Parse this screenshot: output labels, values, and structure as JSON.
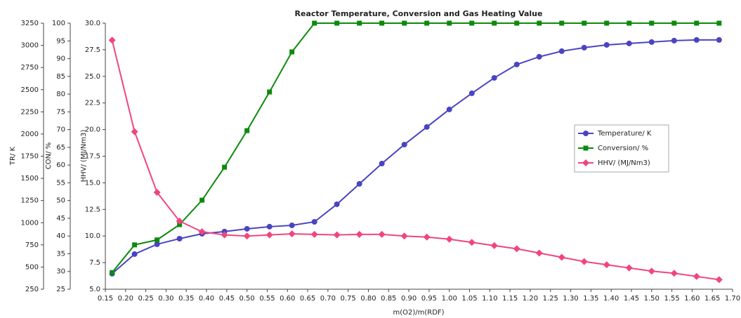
{
  "chart_data": {
    "type": "line",
    "title": "Reactor Temperature, Conversion and Gas Heating Value",
    "x_label": "m(O2)/m(RDF)",
    "y_label": "TR/ K",
    "y2_label": "CON/ %",
    "y3_label": "HHV/ (MJ/Nm3)",
    "x": [
      0.1667,
      0.2222,
      0.2778,
      0.3333,
      0.3889,
      0.4444,
      0.5,
      0.5556,
      0.6111,
      0.6667,
      0.7222,
      0.7778,
      0.8333,
      0.8889,
      0.9444,
      1.0,
      1.0556,
      1.1111,
      1.1667,
      1.2222,
      1.2778,
      1.3333,
      1.3889,
      1.4444,
      1.5,
      1.5556,
      1.6111,
      1.6667
    ],
    "xlim": [
      0.15,
      1.7
    ],
    "xticks": [
      0.15,
      {
        "value": 0.2,
        "label": "0.20"
      },
      0.25,
      {
        "value": 0.3,
        "label": "0.30"
      },
      0.35,
      {
        "value": 0.4,
        "label": "0.40"
      },
      0.45,
      {
        "value": 0.5,
        "label": "0.50"
      },
      0.55,
      {
        "value": 0.6,
        "label": "0.60"
      },
      0.65,
      {
        "value": 0.7,
        "label": "0.70"
      },
      0.75,
      {
        "value": 0.8,
        "label": "0.80"
      },
      0.85,
      {
        "value": 0.9,
        "label": "0.90"
      },
      0.95,
      {
        "value": 1.0,
        "label": "1.00"
      },
      1.05,
      {
        "value": 1.1,
        "label": "1.10"
      },
      1.15,
      {
        "value": 1.2,
        "label": "1.20"
      },
      1.25,
      {
        "value": 1.3,
        "label": "1.30"
      },
      1.35,
      {
        "value": 1.4,
        "label": "1.40"
      },
      1.45,
      {
        "value": 1.5,
        "label": "1.50"
      },
      1.55,
      {
        "value": 1.6,
        "label": "1.60"
      },
      1.65,
      {
        "value": 1.7,
        "label": "1.70"
      }
    ],
    "ylim": [
      250,
      3250
    ],
    "yticks": [
      250,
      500,
      750,
      1000,
      1250,
      1500,
      1750,
      2000,
      2250,
      2500,
      2750,
      3000,
      3250
    ],
    "y2lim": [
      25,
      100
    ],
    "y2ticks": [
      25,
      30,
      35,
      40,
      45,
      50,
      55,
      60,
      65,
      70,
      75,
      80,
      85,
      90,
      95,
      100
    ],
    "y3lim": [
      5,
      30
    ],
    "y3ticks": [
      {
        "value": 5,
        "label": "5.0"
      },
      7.5,
      {
        "value": 10,
        "label": "10.0"
      },
      12.5,
      {
        "value": 15,
        "label": "15.0"
      },
      17.5,
      {
        "value": 20,
        "label": "20.0"
      },
      22.5,
      {
        "value": 25,
        "label": "25.0"
      },
      27.5,
      {
        "value": 30,
        "label": "30.0"
      }
    ],
    "legend": "right",
    "series": [
      {
        "name": "Temperature/ K",
        "color": "#4a44c2",
        "marker": "circle",
        "axis": "y",
        "values": [
          425,
          646,
          757,
          820,
          875,
          900,
          931,
          955,
          970,
          1010,
          1208,
          1438,
          1667,
          1881,
          2079,
          2277,
          2459,
          2633,
          2784,
          2871,
          2934,
          2974,
          3005,
          3021,
          3037,
          3053,
          3061,
          3061
        ]
      },
      {
        "name": "Conversion/ %",
        "color": "#0c8a0c",
        "marker": "square",
        "axis": "y2",
        "values": [
          29.7,
          37.5,
          38.9,
          43.2,
          50.1,
          59.4,
          69.7,
          80.6,
          91.9,
          100,
          100,
          100,
          100,
          100,
          100,
          100,
          100,
          100,
          100,
          100,
          100,
          100,
          100,
          100,
          100,
          100,
          100,
          100
        ]
      },
      {
        "name": "HHV/ (MJ/Nm3)",
        "color": "#f0457f",
        "marker": "diamond",
        "axis": "y3",
        "values": [
          28.4,
          19.8,
          14.1,
          11.4,
          10.4,
          10.1,
          10.0,
          10.1,
          10.2,
          10.15,
          10.1,
          10.15,
          10.15,
          10.0,
          9.9,
          9.7,
          9.4,
          9.1,
          8.8,
          8.4,
          8.0,
          7.6,
          7.3,
          7.0,
          6.7,
          6.5,
          6.2,
          5.9
        ]
      }
    ]
  }
}
